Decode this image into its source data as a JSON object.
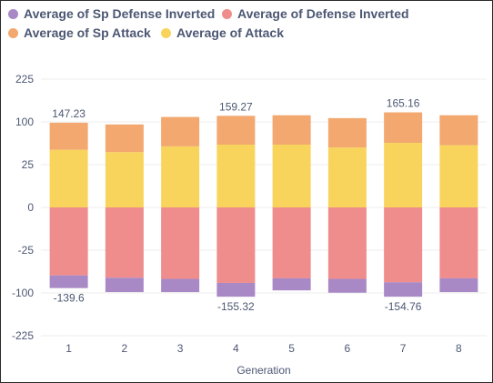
{
  "chart_data": {
    "type": "bar",
    "stacked": true,
    "xlabel": "Generation",
    "ylabel": "",
    "categories": [
      "1",
      "2",
      "3",
      "4",
      "5",
      "6",
      "7",
      "8"
    ],
    "y_ticks": [
      225,
      100,
      25,
      0,
      -25,
      -100,
      -225
    ],
    "grid": true,
    "legend_position": "top",
    "series": [
      {
        "name": "Average of Sp Defense Inverted",
        "color": "#a989c5",
        "values": [
          -22,
          -25,
          -23,
          -24,
          -21,
          -24,
          -25,
          -24
        ]
      },
      {
        "name": "Average of Defense Inverted",
        "color": "#ef8c8c",
        "values": [
          -118,
          -122,
          -124,
          -131,
          -123,
          -124,
          -130,
          -123
        ]
      },
      {
        "name": "Average of Sp Attack",
        "color": "#f2a86f",
        "values": [
          47,
          48,
          51,
          50,
          51,
          51,
          53,
          52
        ]
      },
      {
        "name": "Average of Attack",
        "color": "#f9d45c",
        "values": [
          100,
          96,
          106,
          109,
          109,
          104,
          112,
          108
        ]
      }
    ],
    "total_labels": [
      {
        "category": "1",
        "position": "top",
        "text": "147.23"
      },
      {
        "category": "1",
        "position": "bottom",
        "text": "-139.6"
      },
      {
        "category": "4",
        "position": "top",
        "text": "159.27"
      },
      {
        "category": "4",
        "position": "bottom",
        "text": "-155.32"
      },
      {
        "category": "7",
        "position": "top",
        "text": "165.16"
      },
      {
        "category": "7",
        "position": "bottom",
        "text": "-154.76"
      }
    ]
  }
}
